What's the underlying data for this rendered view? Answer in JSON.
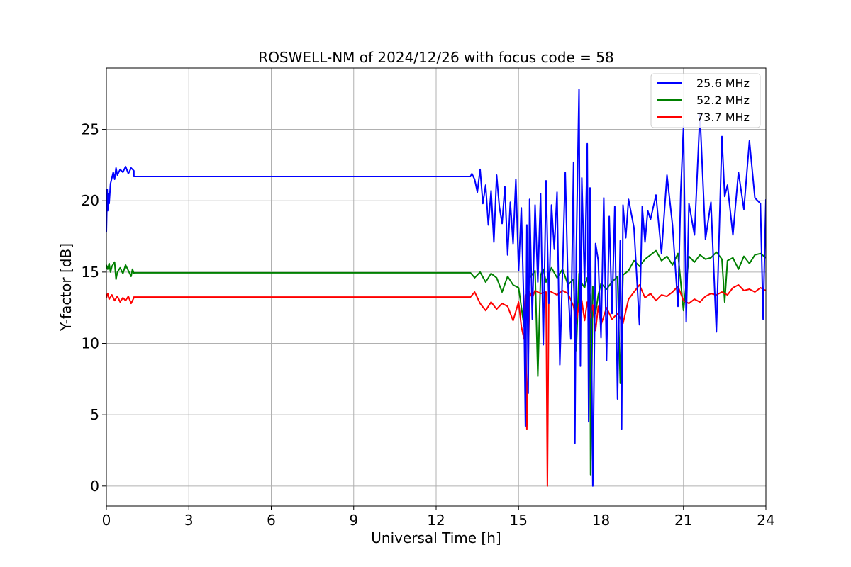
{
  "chart_data": {
    "type": "line",
    "title": "ROSWELL-NM of 2024/12/26 with focus code = 58",
    "xlabel": "Universal Time [h]",
    "ylabel": "Y-factor [dB]",
    "xlim": [
      0,
      24
    ],
    "ylim": [
      -1.4,
      29.3
    ],
    "xticks": [
      0,
      3,
      6,
      9,
      12,
      15,
      18,
      21,
      24
    ],
    "yticks": [
      0,
      5,
      10,
      15,
      20,
      25
    ],
    "grid": true,
    "legend_position": "top-right",
    "series": [
      {
        "name": "25.6 MHz",
        "color": "#0000ff",
        "x": [
          0.0,
          0.03,
          0.05,
          0.08,
          0.1,
          0.15,
          0.2,
          0.25,
          0.3,
          0.35,
          0.4,
          0.5,
          0.6,
          0.7,
          0.8,
          0.9,
          1.0,
          1.0,
          13.25,
          13.3,
          13.4,
          13.5,
          13.6,
          13.7,
          13.8,
          13.9,
          14.0,
          14.1,
          14.2,
          14.3,
          14.4,
          14.5,
          14.6,
          14.7,
          14.8,
          14.9,
          15.0,
          15.1,
          15.2,
          15.25,
          15.3,
          15.35,
          15.4,
          15.5,
          15.6,
          15.7,
          15.8,
          15.9,
          16.0,
          16.1,
          16.2,
          16.3,
          16.4,
          16.5,
          16.6,
          16.7,
          16.8,
          16.9,
          17.0,
          17.05,
          17.1,
          17.2,
          17.25,
          17.3,
          17.4,
          17.5,
          17.55,
          17.6,
          17.7,
          17.8,
          17.9,
          18.0,
          18.1,
          18.2,
          18.3,
          18.4,
          18.5,
          18.6,
          18.7,
          18.75,
          18.8,
          18.9,
          19.0,
          19.2,
          19.4,
          19.5,
          19.6,
          19.7,
          19.8,
          20.0,
          20.2,
          20.4,
          20.6,
          20.8,
          20.9,
          21.0,
          21.1,
          21.2,
          21.4,
          21.6,
          21.8,
          22.0,
          22.2,
          22.4,
          22.5,
          22.6,
          22.8,
          23.0,
          23.2,
          23.4,
          23.6,
          23.8,
          23.9,
          24.0
        ],
        "y": [
          17.8,
          20.8,
          19.3,
          20.5,
          19.8,
          21.2,
          21.6,
          22.0,
          21.5,
          22.3,
          21.8,
          22.2,
          22.0,
          22.4,
          21.9,
          22.3,
          22.1,
          21.7,
          21.7,
          21.9,
          21.5,
          20.6,
          22.2,
          19.8,
          21.1,
          18.3,
          20.7,
          17.1,
          21.8,
          19.6,
          18.4,
          21.0,
          16.2,
          19.9,
          17.0,
          21.5,
          15.1,
          19.5,
          12.0,
          4.2,
          18.3,
          6.5,
          20.1,
          11.7,
          19.7,
          14.3,
          20.5,
          9.9,
          21.4,
          12.8,
          19.7,
          16.6,
          20.6,
          8.5,
          15.2,
          22.0,
          14.0,
          10.3,
          22.7,
          3.0,
          16.5,
          27.8,
          8.4,
          21.6,
          14.1,
          24.0,
          4.5,
          20.9,
          0.0,
          17.0,
          15.8,
          10.4,
          20.2,
          8.8,
          18.9,
          12.1,
          19.6,
          6.1,
          17.2,
          4.0,
          19.7,
          17.4,
          20.1,
          18.1,
          11.3,
          19.6,
          17.1,
          19.3,
          18.7,
          20.4,
          16.3,
          21.8,
          18.3,
          12.6,
          20.6,
          25.2,
          11.5,
          19.8,
          17.6,
          26.1,
          17.3,
          19.9,
          10.8,
          24.5,
          20.3,
          21.1,
          17.6,
          22.0,
          19.4,
          24.2,
          20.2,
          19.8,
          11.7,
          20.1
        ]
      },
      {
        "name": "52.2 MHz",
        "color": "#008000",
        "x": [
          0.0,
          0.05,
          0.1,
          0.15,
          0.2,
          0.3,
          0.35,
          0.4,
          0.5,
          0.6,
          0.7,
          0.8,
          0.9,
          0.95,
          1.0,
          1.0,
          13.25,
          13.4,
          13.6,
          13.8,
          14.0,
          14.2,
          14.4,
          14.6,
          14.8,
          15.0,
          15.2,
          15.4,
          15.6,
          15.7,
          15.8,
          15.9,
          16.0,
          16.1,
          16.2,
          16.4,
          16.6,
          16.8,
          17.0,
          17.1,
          17.2,
          17.3,
          17.4,
          17.5,
          17.6,
          17.62,
          17.7,
          17.8,
          17.9,
          18.0,
          18.2,
          18.4,
          18.6,
          18.7,
          18.8,
          19.0,
          19.2,
          19.4,
          19.6,
          19.8,
          20.0,
          20.2,
          20.4,
          20.6,
          20.8,
          21.0,
          21.2,
          21.4,
          21.6,
          21.8,
          22.0,
          22.2,
          22.4,
          22.5,
          22.6,
          22.8,
          23.0,
          23.2,
          23.4,
          23.6,
          23.8,
          24.0
        ],
        "y": [
          15.5,
          15.2,
          15.6,
          15.0,
          15.4,
          15.7,
          14.5,
          15.0,
          15.3,
          14.9,
          15.5,
          15.1,
          14.7,
          15.2,
          14.9,
          14.95,
          14.95,
          14.6,
          15.0,
          14.3,
          14.9,
          14.6,
          13.6,
          14.7,
          14.1,
          13.9,
          11.2,
          14.6,
          15.1,
          7.7,
          14.8,
          15.2,
          14.3,
          14.9,
          15.3,
          14.6,
          15.2,
          14.1,
          14.5,
          9.5,
          14.9,
          14.2,
          13.9,
          14.6,
          13.2,
          0.8,
          14.0,
          12.1,
          13.4,
          14.2,
          13.8,
          14.3,
          14.7,
          7.2,
          14.8,
          15.1,
          15.8,
          15.4,
          15.9,
          16.2,
          16.5,
          15.8,
          16.1,
          15.5,
          16.3,
          12.3,
          16.1,
          15.7,
          16.2,
          15.9,
          16.0,
          16.4,
          15.9,
          12.9,
          15.8,
          16.0,
          15.2,
          16.1,
          15.6,
          16.2,
          16.3,
          16.0
        ]
      },
      {
        "name": "73.7 MHz",
        "color": "#ff0000",
        "x": [
          0.0,
          0.05,
          0.1,
          0.2,
          0.3,
          0.4,
          0.5,
          0.6,
          0.7,
          0.8,
          0.9,
          1.0,
          1.0,
          13.25,
          13.4,
          13.6,
          13.8,
          14.0,
          14.2,
          14.4,
          14.6,
          14.8,
          15.0,
          15.1,
          15.2,
          15.25,
          15.3,
          15.4,
          15.5,
          15.6,
          15.8,
          16.0,
          16.05,
          16.1,
          16.2,
          16.4,
          16.6,
          16.8,
          17.0,
          17.1,
          17.2,
          17.3,
          17.4,
          17.5,
          17.6,
          17.7,
          17.8,
          17.9,
          18.0,
          18.2,
          18.4,
          18.6,
          18.8,
          19.0,
          19.2,
          19.4,
          19.6,
          19.8,
          20.0,
          20.2,
          20.4,
          20.6,
          20.8,
          21.0,
          21.2,
          21.4,
          21.6,
          21.8,
          22.0,
          22.2,
          22.4,
          22.6,
          22.8,
          23.0,
          23.2,
          23.4,
          23.6,
          23.8,
          24.0
        ],
        "y": [
          13.2,
          13.5,
          13.1,
          13.4,
          13.0,
          13.3,
          12.9,
          13.2,
          13.0,
          13.3,
          12.8,
          13.2,
          13.25,
          13.25,
          13.6,
          12.8,
          12.3,
          12.9,
          12.4,
          12.8,
          12.6,
          11.6,
          12.9,
          11.2,
          10.3,
          13.4,
          4.0,
          13.6,
          13.2,
          13.7,
          13.5,
          13.6,
          0.0,
          13.7,
          13.6,
          13.4,
          13.7,
          13.5,
          12.6,
          11.4,
          12.8,
          13.0,
          11.6,
          12.9,
          11.8,
          12.7,
          10.9,
          12.6,
          11.3,
          12.5,
          11.7,
          12.1,
          11.4,
          13.1,
          13.6,
          14.1,
          13.2,
          13.5,
          13.0,
          13.4,
          13.3,
          13.6,
          14.0,
          13.0,
          12.8,
          13.1,
          12.9,
          13.3,
          13.5,
          13.4,
          13.6,
          13.4,
          13.9,
          14.1,
          13.7,
          13.8,
          13.6,
          13.9,
          13.7
        ]
      }
    ]
  }
}
